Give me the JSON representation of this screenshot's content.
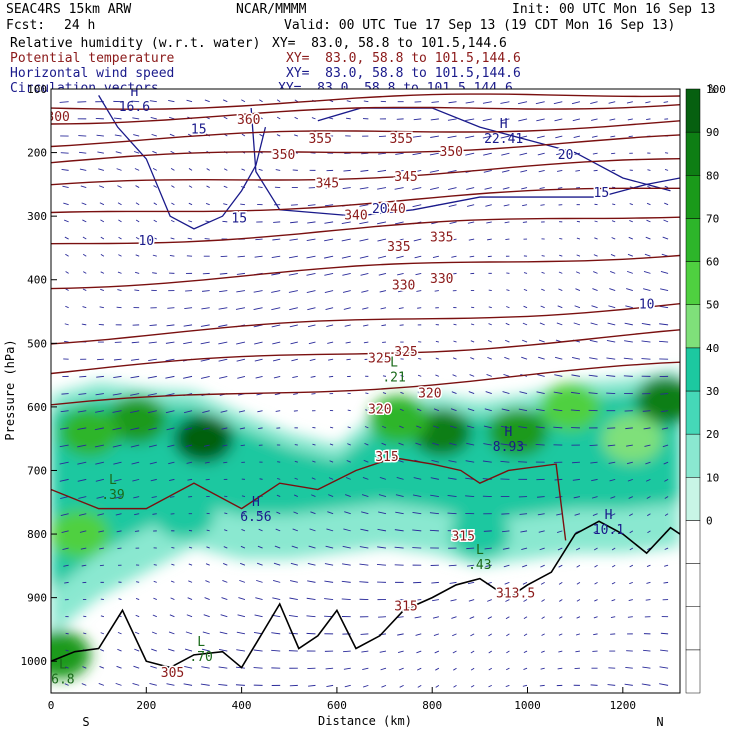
{
  "header": {
    "model": "SEAC4RS 15km ARW",
    "org": "NCAR/MMMM",
    "init": "Init: 00 UTC Mon 16 Sep 13",
    "fcst_label": "Fcst:",
    "fcst_value": "24 h",
    "valid": "Valid: 00 UTC Tue 17 Sep 13 (19 CDT Mon 16 Sep 13)"
  },
  "fields": [
    {
      "name": "Relative humidity (w.r.t. water)",
      "xy": "XY=  83.0, 58.8 to 101.5,144.6",
      "color": "#000000"
    },
    {
      "name": "Potential temperature",
      "xy": "XY=  83.0, 58.8 to 101.5,144.6",
      "color": "#8b1a1a"
    },
    {
      "name": "Horizontal wind speed",
      "xy": "XY=  83.0, 58.8 to 101.5,144.6",
      "color": "#1a1a8b"
    },
    {
      "name": "Circulation vectors",
      "xy": "XY=  83.0, 58.8 to 101.5,144.6",
      "color": "#1a1a8b"
    }
  ],
  "chart_data": {
    "type": "heatmap",
    "xlabel": "Distance (km)",
    "ylabel": "Pressure (hPa)",
    "xlim": [
      0,
      1320
    ],
    "ylim": [
      1050,
      100
    ],
    "x_ticks": [
      0,
      200,
      400,
      600,
      800,
      1000,
      1200
    ],
    "y_ticks": [
      100,
      200,
      300,
      400,
      500,
      600,
      700,
      800,
      900,
      1000
    ],
    "x_end_labels": {
      "left": "S",
      "right": "N"
    },
    "colorbar": {
      "unit": "%",
      "ticks": [
        0,
        10,
        20,
        30,
        40,
        50,
        60,
        70,
        80,
        90,
        100
      ],
      "colors": [
        "#ffffff",
        "#ffffff",
        "#ffffff",
        "#ffffff",
        "#c8f5e6",
        "#8ae8d0",
        "#45d8b8",
        "#1cc8a0",
        "#7fe07a",
        "#4fd040",
        "#2db52a",
        "#1a9a1a",
        "#0e7e14",
        "#066010"
      ]
    },
    "rh_blobs": [
      {
        "x": 320,
        "p": 650,
        "level": 100
      },
      {
        "x": 180,
        "p": 620,
        "level": 80
      },
      {
        "x": 80,
        "p": 640,
        "level": 70
      },
      {
        "x": 820,
        "p": 640,
        "level": 90
      },
      {
        "x": 730,
        "p": 620,
        "level": 70
      },
      {
        "x": 980,
        "p": 640,
        "level": 80
      },
      {
        "x": 1090,
        "p": 600,
        "level": 60
      },
      {
        "x": 1290,
        "p": 590,
        "level": 90
      },
      {
        "x": 1220,
        "p": 650,
        "level": 50
      },
      {
        "x": 60,
        "p": 800,
        "level": 60
      },
      {
        "x": 280,
        "p": 770,
        "level": 40
      },
      {
        "x": 900,
        "p": 800,
        "level": 40
      },
      {
        "x": 20,
        "p": 990,
        "level": 80
      }
    ],
    "theta_labels": [
      {
        "text": "300",
        "x": 15,
        "p": 150
      },
      {
        "text": "360",
        "x": 415,
        "p": 155
      },
      {
        "text": "355",
        "x": 565,
        "p": 185
      },
      {
        "text": "355",
        "x": 735,
        "p": 185
      },
      {
        "text": "350",
        "x": 488,
        "p": 210
      },
      {
        "text": "350",
        "x": 840,
        "p": 205
      },
      {
        "text": "345",
        "x": 580,
        "p": 255
      },
      {
        "text": "345",
        "x": 745,
        "p": 245
      },
      {
        "text": "340",
        "x": 640,
        "p": 305
      },
      {
        "text": "340",
        "x": 720,
        "p": 295
      },
      {
        "text": "335",
        "x": 730,
        "p": 355
      },
      {
        "text": "335",
        "x": 820,
        "p": 340
      },
      {
        "text": "330",
        "x": 740,
        "p": 415
      },
      {
        "text": "330",
        "x": 820,
        "p": 405
      },
      {
        "text": "325",
        "x": 690,
        "p": 530
      },
      {
        "text": "325",
        "x": 745,
        "p": 520
      },
      {
        "text": "320",
        "x": 690,
        "p": 610
      },
      {
        "text": "320",
        "x": 795,
        "p": 585
      },
      {
        "text": "315",
        "x": 705,
        "p": 685
      },
      {
        "text": "315",
        "x": 865,
        "p": 810
      },
      {
        "text": "315",
        "x": 745,
        "p": 920
      },
      {
        "text": "313.5",
        "x": 975,
        "p": 900
      },
      {
        "text": "305",
        "x": 255,
        "p": 1025
      }
    ],
    "wind_labels": [
      {
        "text": "15",
        "x": 310,
        "p": 170
      },
      {
        "text": "15",
        "x": 395,
        "p": 310
      },
      {
        "text": "10",
        "x": 200,
        "p": 345
      },
      {
        "text": "20",
        "x": 1080,
        "p": 210
      },
      {
        "text": "15",
        "x": 1155,
        "p": 270
      },
      {
        "text": "10",
        "x": 1250,
        "p": 445
      },
      {
        "text": "20",
        "x": 690,
        "p": 295
      }
    ],
    "extrema": [
      {
        "type": "H",
        "value": "16.6",
        "x": 175,
        "p": 130
      },
      {
        "type": "H",
        "value": "22.41",
        "x": 950,
        "p": 180
      },
      {
        "type": "L",
        "value": ".21",
        "x": 720,
        "p": 555
      },
      {
        "type": "H",
        "value": "8.93",
        "x": 960,
        "p": 665
      },
      {
        "type": "L",
        "value": ".39",
        "x": 130,
        "p": 740
      },
      {
        "type": "H",
        "value": "6.56",
        "x": 430,
        "p": 775
      },
      {
        "type": "H",
        "value": "10.1",
        "x": 1170,
        "p": 795
      },
      {
        "type": "L",
        "value": ".43",
        "x": 900,
        "p": 850
      },
      {
        "type": "L",
        "value": ".70",
        "x": 315,
        "p": 995
      },
      {
        "type": "L",
        "value": "6.8",
        "x": 25,
        "p": 1030
      }
    ]
  }
}
